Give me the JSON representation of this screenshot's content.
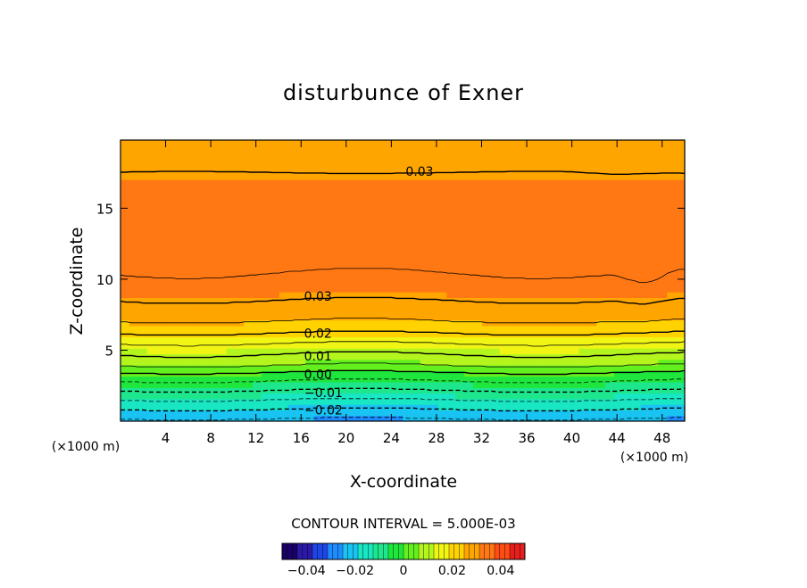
{
  "chart_data": {
    "type": "heatmap",
    "subtype": "filled-contour",
    "title": "disturbunce of Exner",
    "xlabel": "X-coordinate",
    "ylabel": "Z-coordinate",
    "x_unit_left": "(×1000 m)",
    "x_unit_right": "(×1000 m)",
    "xlim": [
      0,
      50
    ],
    "ylim": [
      0,
      19.8
    ],
    "x_ticks": [
      4,
      8,
      12,
      16,
      20,
      24,
      28,
      32,
      36,
      40,
      44,
      48
    ],
    "y_ticks": [
      5,
      10,
      15
    ],
    "contour_interval_text": "CONTOUR INTERVAL = 5.000E-03",
    "contour_interval": 0.005,
    "value_range": [
      -0.05,
      0.05
    ],
    "colorbar_ticks": [
      "−0.04",
      "−0.02",
      "0",
      "0.02",
      "0.04"
    ],
    "colorbar_tick_values": [
      -0.04,
      -0.02,
      0,
      0.02,
      0.04
    ],
    "contour_labels": [
      {
        "text": "0.03",
        "x": 26.5,
        "z": 17.6
      },
      {
        "text": "0.03",
        "x": 17.5,
        "z": 8.8
      },
      {
        "text": "0.02",
        "x": 17.5,
        "z": 6.2
      },
      {
        "text": "0.01",
        "x": 17.5,
        "z": 4.6
      },
      {
        "text": "0.00",
        "x": 17.5,
        "z": 3.3
      },
      {
        "text": "−0.01",
        "x": 18.0,
        "z": 2.0
      },
      {
        "text": "−0.02",
        "x": 18.0,
        "z": 0.8
      }
    ],
    "profile": [
      {
        "z": 0.0,
        "v": -0.026
      },
      {
        "z": 0.8,
        "v": -0.02
      },
      {
        "z": 1.6,
        "v": -0.014
      },
      {
        "z": 2.4,
        "v": -0.008
      },
      {
        "z": 3.2,
        "v": -0.002
      },
      {
        "z": 4.0,
        "v": 0.006
      },
      {
        "z": 5.0,
        "v": 0.012
      },
      {
        "z": 6.0,
        "v": 0.019
      },
      {
        "z": 7.0,
        "v": 0.025
      },
      {
        "z": 8.3,
        "v": 0.0295
      },
      {
        "z": 10.0,
        "v": 0.0345
      },
      {
        "z": 12.0,
        "v": 0.037
      },
      {
        "z": 14.0,
        "v": 0.0355
      },
      {
        "z": 16.0,
        "v": 0.0335
      },
      {
        "z": 17.5,
        "v": 0.03
      },
      {
        "z": 19.8,
        "v": 0.026
      }
    ],
    "colors": {
      "background": "#ffffff",
      "scale": [
        "#1a0066",
        "#2b1aa8",
        "#1e46e6",
        "#1e8cff",
        "#19c3f2",
        "#19e6c3",
        "#1ee68c",
        "#1ee63c",
        "#64f01e",
        "#b4f51e",
        "#f0f514",
        "#ffd200",
        "#ffa500",
        "#ff7814",
        "#ff4b14",
        "#e61e1e"
      ]
    }
  }
}
